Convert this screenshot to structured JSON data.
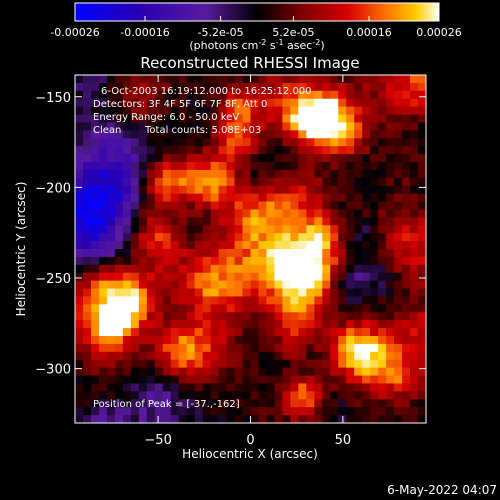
{
  "window": {
    "title": "Reconstructed RHESSI Image"
  },
  "colorbar": {
    "ticks": [
      "-0.00026",
      "-0.00016",
      "-5.2e-05",
      "5.2e-05",
      "0.00016",
      "0.00026"
    ],
    "tick_values": [
      -0.00026,
      -0.00016,
      -5.2e-05,
      5.2e-05,
      0.00016,
      0.00026
    ],
    "range": [
      -0.00026,
      0.00026
    ],
    "units_parts": [
      "(photons cm",
      "-2",
      " s",
      "-1",
      " asec",
      "-2",
      ")"
    ],
    "colors": [
      "#0000ff",
      "#2a00b0",
      "#5a1aa0",
      "#000000",
      "#7a0000",
      "#d80000",
      "#ff7a00",
      "#ffd000",
      "#ffffff"
    ]
  },
  "annotations": {
    "line1": "6-Oct-2003 16:19:12.000 to 16:25:12.000",
    "line2": "Detectors: 3F 4F 5F 6F 7F 8F, Att 0",
    "line3": "Energy Range: 6.0 - 50.0 keV",
    "line4_clean": "Clean",
    "line4_counts": "Total counts: 5.08E+03",
    "peak": "Position of Peak = [-37.,-162]"
  },
  "footer": {
    "date": "6-May-2022 04:07"
  },
  "chart_data": {
    "type": "heatmap",
    "title": "Reconstructed RHESSI Image",
    "xlabel": "Heliocentric X (arcsec)",
    "ylabel": "Heliocentric Y (arcsec)",
    "xlim": [
      -95,
      95
    ],
    "ylim": [
      -330,
      -138
    ],
    "xticks": [
      -50,
      0,
      50
    ],
    "xtick_labels": [
      "−50",
      "0",
      "50"
    ],
    "yticks": [
      -150,
      -200,
      -250,
      -300
    ],
    "ytick_labels": [
      "−150",
      "−200",
      "−250",
      "−300"
    ],
    "grid": false,
    "colorbar_range": [
      -0.00026,
      0.00026
    ],
    "peak_position": [
      -37,
      -162
    ]
  }
}
